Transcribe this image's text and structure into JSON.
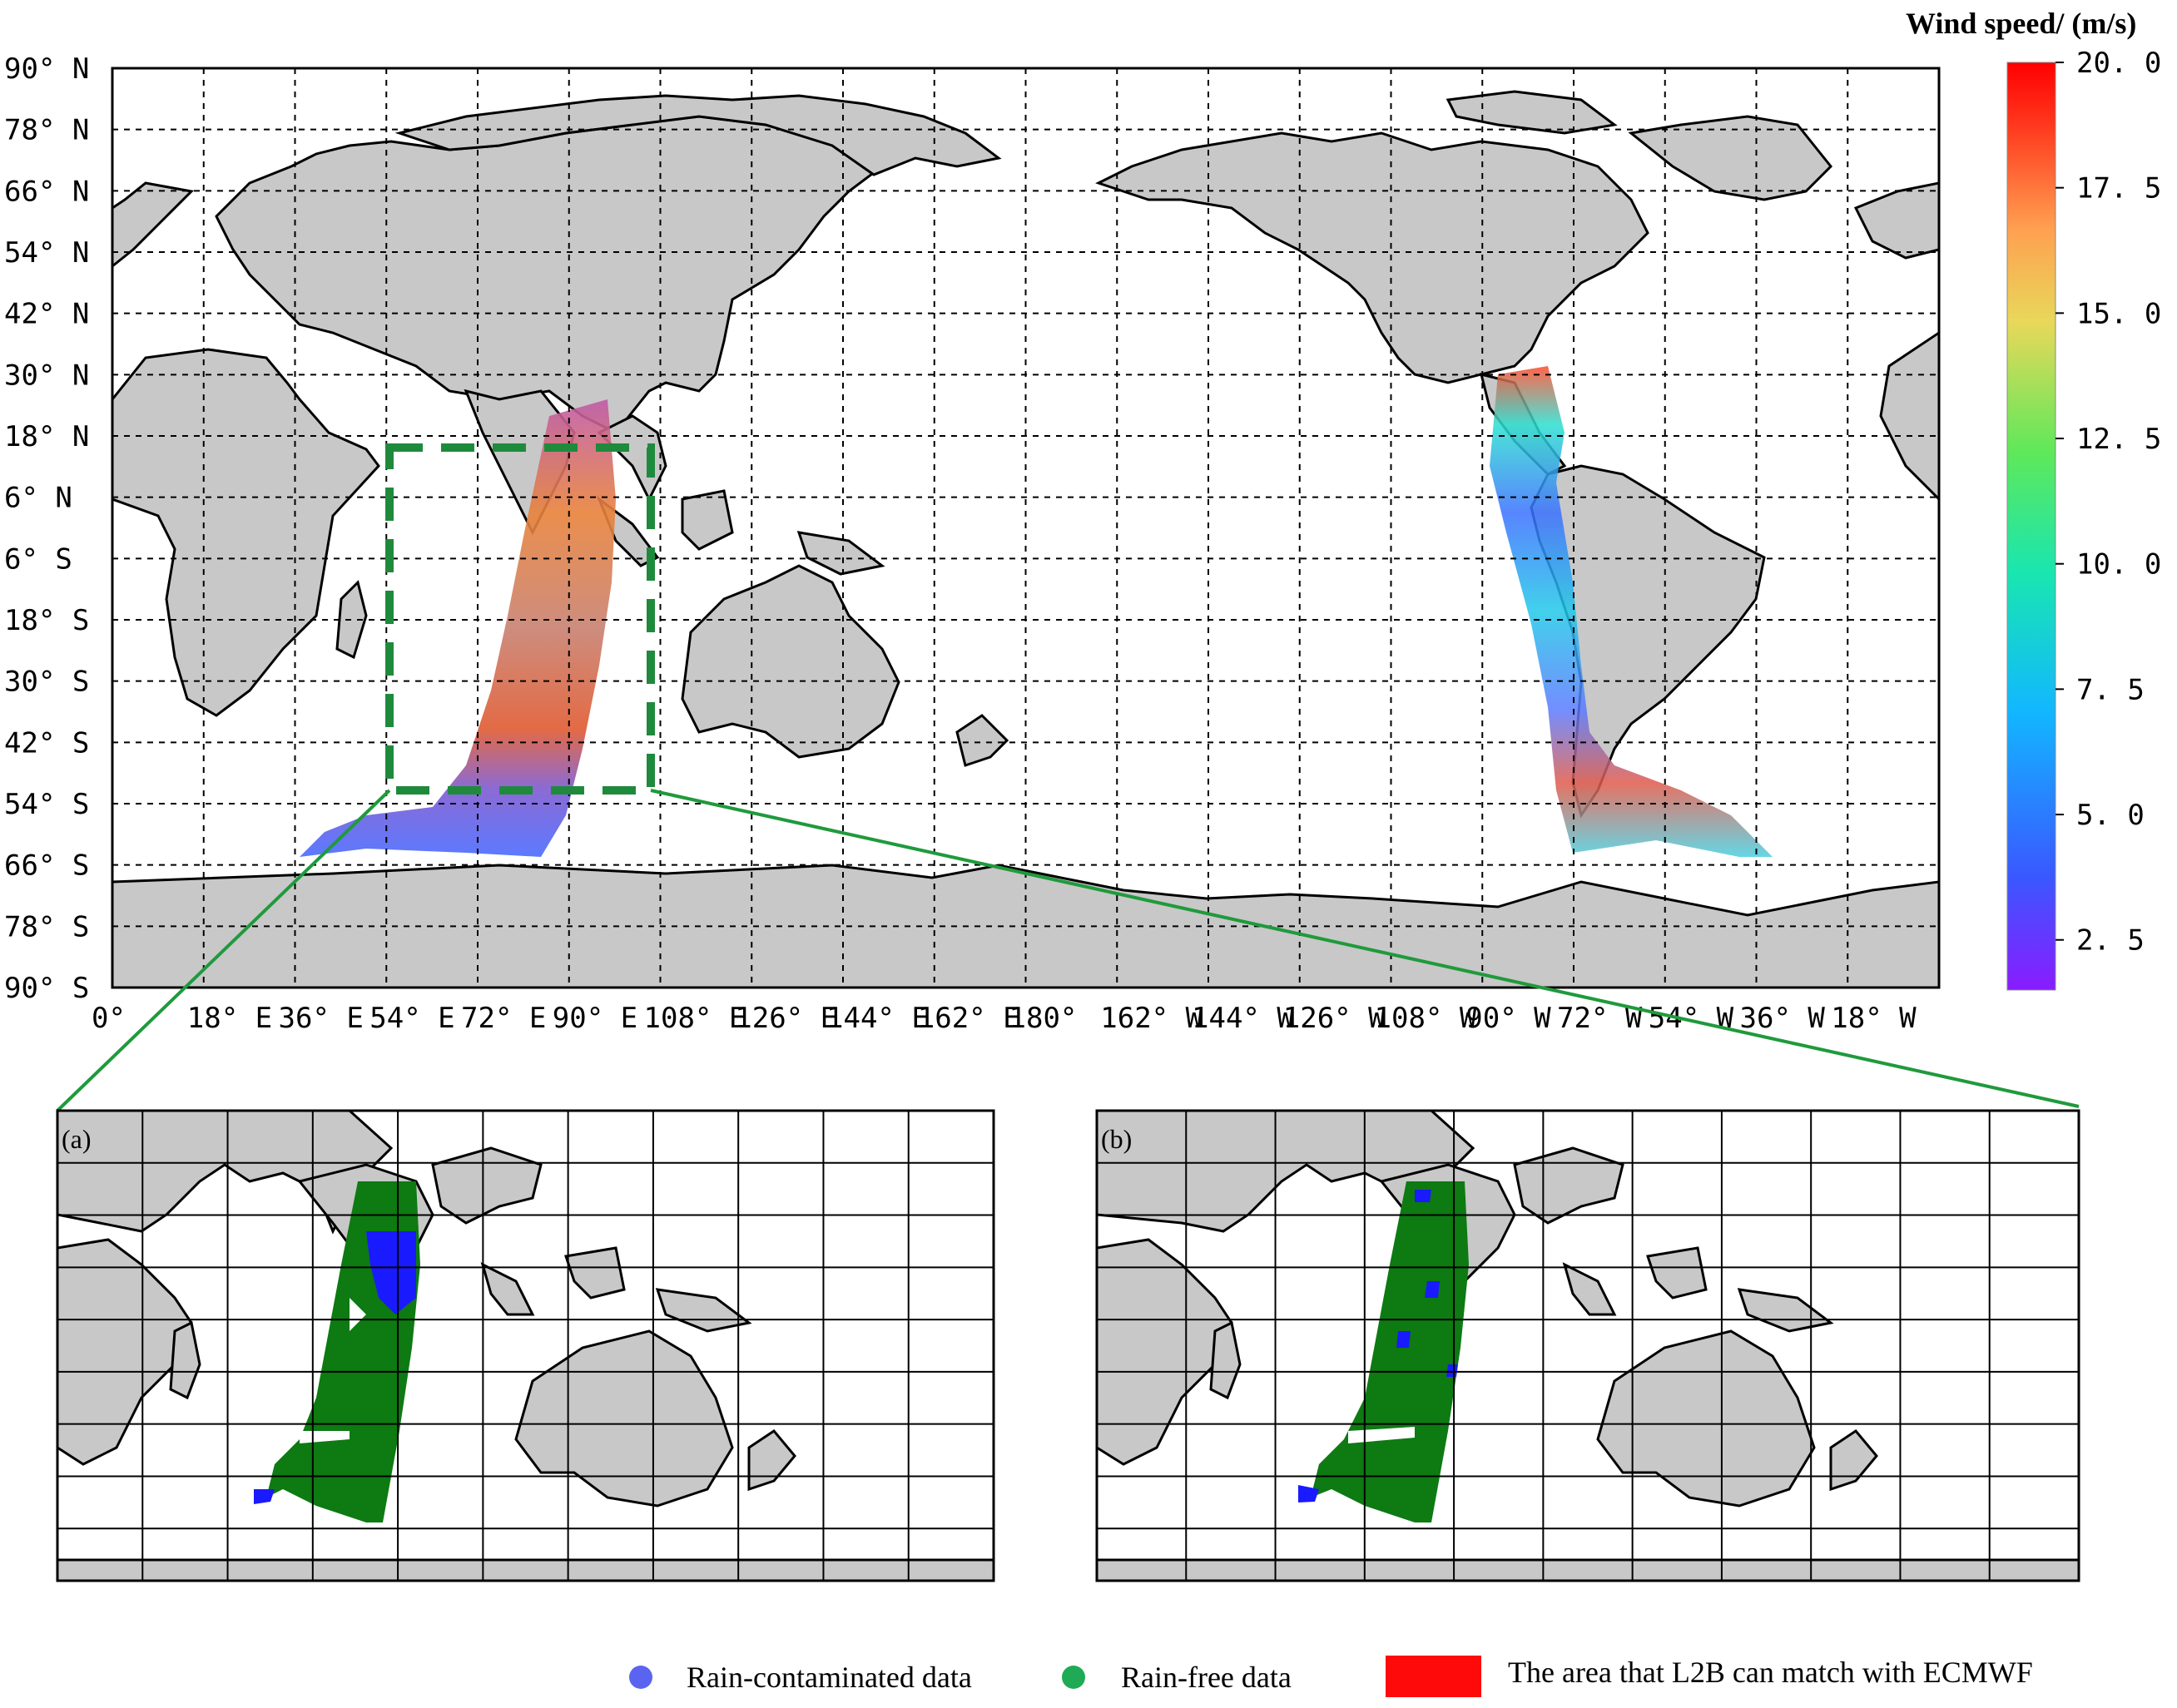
{
  "main_map": {
    "lat_labels": [
      "90° N",
      "78° N",
      "66° N",
      "54° N",
      "42° N",
      "30° N",
      "18° N",
      "6° N",
      "6° S",
      "18° S",
      "30° S",
      "42° S",
      "54° S",
      "66° S",
      "78° S",
      "90° S"
    ],
    "lon_labels": [
      "0°",
      "18° E",
      "36° E",
      "54° E",
      "72° E",
      "90° E",
      "108° E",
      "126° E",
      "144° E",
      "162° E",
      "180°",
      "162° W",
      "144° W",
      "126° W",
      "108° W",
      "90° W",
      "72° W",
      "54° W",
      "36° W",
      "18° W"
    ]
  },
  "colorbar": {
    "title": "Wind speed/ (m/s)",
    "ticks": [
      "20.0",
      "17.5",
      "15.0",
      "12.5",
      "10.0",
      "7.5",
      "5.0",
      "2.5"
    ],
    "range": [
      1.5,
      20.0
    ],
    "colors": [
      "#8a1cff",
      "#3b57ff",
      "#12b7ff",
      "#19e6b0",
      "#5fe85a",
      "#e8d85a",
      "#ffa050",
      "#ff3a1f",
      "#ff0000"
    ]
  },
  "panels": [
    {
      "label": "(a)"
    },
    {
      "label": "(b)"
    }
  ],
  "legend": {
    "items": [
      {
        "label": "Rain-contaminated data",
        "color": "#5b64f0"
      },
      {
        "label": "Rain-free data",
        "color": "#1faa55"
      },
      {
        "label": "The area that L2B can match with ECMWF",
        "color": "#ff0a0a"
      }
    ]
  },
  "colors": {
    "land": "#c8c8c8",
    "ocean": "#ffffff",
    "highlight_box": "#1f8a3c",
    "rain_free_swath": "#0d7a12",
    "rain_contaminated": "#1a1aff"
  }
}
